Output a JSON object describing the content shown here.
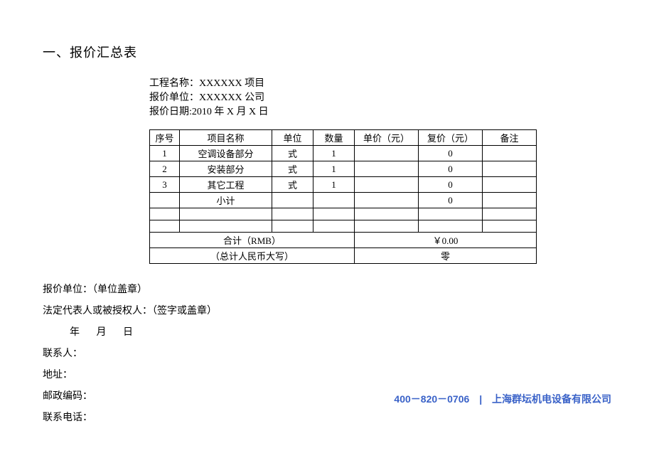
{
  "title": "一、报价汇总表",
  "meta": {
    "project_label": "工程名称：",
    "project_value": "XXXXXX 项目",
    "unit_label": "报价单位：",
    "unit_value": "XXXXXX 公司",
    "date_label": "报价日期:",
    "date_value": "2010 年 X 月 X 日"
  },
  "table": {
    "headers": {
      "seq": "序号",
      "name": "项目名称",
      "unit": "单位",
      "qty": "数量",
      "uprc": "单价（元）",
      "tprc": "复价（元）",
      "note": "备注"
    },
    "rows": [
      {
        "seq": "1",
        "name": "空调设备部分",
        "unit": "式",
        "qty": "1",
        "uprc": "",
        "tprc": "0",
        "note": ""
      },
      {
        "seq": "2",
        "name": "安装部分",
        "unit": "式",
        "qty": "1",
        "uprc": "",
        "tprc": "0",
        "note": ""
      },
      {
        "seq": "3",
        "name": "其它工程",
        "unit": "式",
        "qty": "1",
        "uprc": "",
        "tprc": "0",
        "note": ""
      }
    ],
    "subtotal_label": "小计",
    "subtotal_value": "0",
    "total_label": "合计（RMB）",
    "total_value": "￥0.00",
    "total_cn_label": "（总计人民币大写）",
    "total_cn_value": "零"
  },
  "signatures": {
    "unit": "报价单位：（单位盖章）",
    "legal": "法定代表人或被授权人：（签字或盖章）",
    "date": "年 月 日",
    "contact": "联系人：",
    "address": "地址：",
    "zipcode": "邮政编码：",
    "phone": "联系电话："
  },
  "footer": {
    "phone": "400－820－0706",
    "sep": "|",
    "company": "上海群坛机电设备有限公司",
    "color": "#3a62c8"
  }
}
